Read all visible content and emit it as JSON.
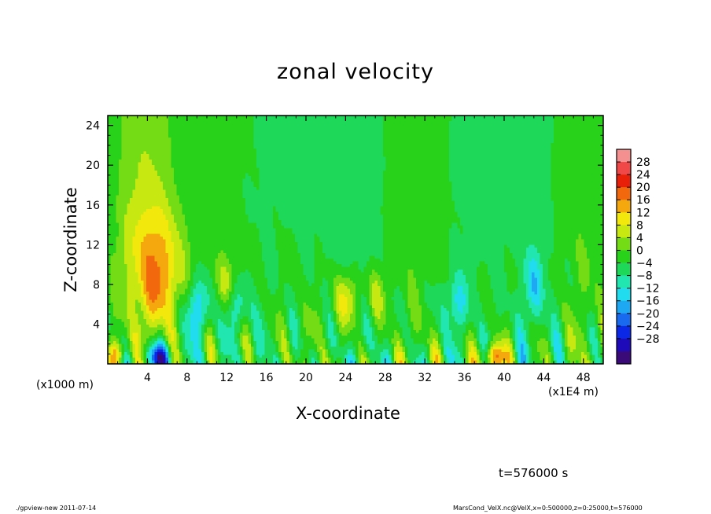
{
  "chart_data": {
    "type": "heatmap",
    "title": "zonal velocity",
    "xlabel": "X-coordinate",
    "ylabel": "Z-coordinate",
    "x_unit": "(x1E4 m)",
    "z_unit": "(x1000 m)",
    "xlim": [
      0,
      50
    ],
    "ylim": [
      0,
      25
    ],
    "x_ticks": [
      "4",
      "8",
      "12",
      "16",
      "20",
      "24",
      "28",
      "32",
      "36",
      "40",
      "44",
      "48"
    ],
    "y_ticks": [
      "4",
      "8",
      "12",
      "16",
      "20",
      "24"
    ],
    "colorbar": {
      "labels": [
        "28",
        "24",
        "20",
        "16",
        "12",
        "8",
        "4",
        "0",
        "−4",
        "−8",
        "−12",
        "−16",
        "−20",
        "−24",
        "−28"
      ],
      "levels": [
        32,
        28,
        24,
        20,
        16,
        12,
        8,
        4,
        0,
        -4,
        -8,
        -12,
        -16,
        -20,
        -24,
        -28,
        -32
      ]
    },
    "field_summary": {
      "background_value_range": [
        -4,
        4
      ],
      "max_positive_near": {
        "x": 39,
        "z": 0.5,
        "value": 24
      },
      "max_negative_near": {
        "x": 5,
        "z": 0.5,
        "value": -24
      }
    }
  },
  "annotations": {
    "time": "t=576000 s",
    "footer_left": "./gpview-new   2011-07-14",
    "footer_right": "MarsCond_VelX.nc@VelX,x=0:500000,z=0:25000,t=576000"
  },
  "colors": {
    "palette": [
      "#3a0a78",
      "#1e0ab8",
      "#0a28e6",
      "#1a6af0",
      "#1ea8f4",
      "#20dcee",
      "#22e6b0",
      "#1ed85a",
      "#28d21a",
      "#74dc14",
      "#c8e812",
      "#f2e80c",
      "#f4a80e",
      "#f2680c",
      "#e8200a",
      "#f04848",
      "#f49090"
    ]
  }
}
